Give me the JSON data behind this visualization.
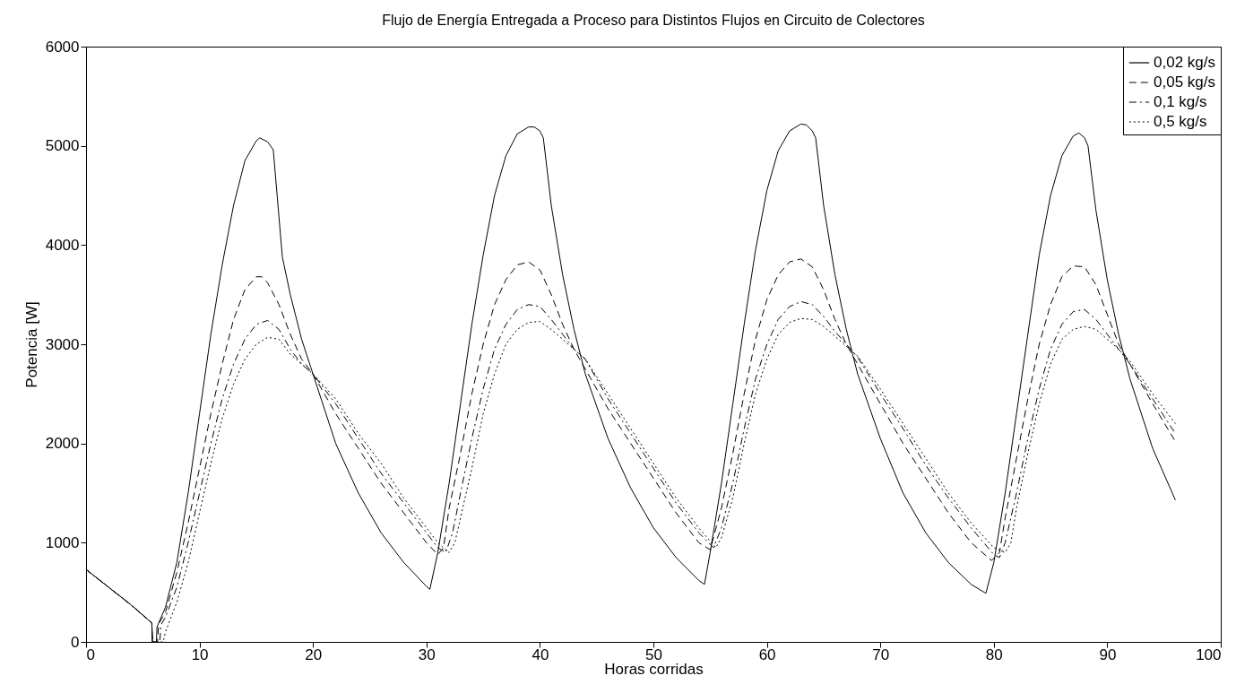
{
  "chart_data": {
    "type": "line",
    "title": "Flujo de Energía Entregada a Proceso para Distintos Flujos en Circuito de Colectores",
    "xlabel": "Horas corridas",
    "ylabel": "Potencia [W]",
    "xlim": [
      0,
      100
    ],
    "ylim": [
      0,
      6000
    ],
    "xticks": [
      0,
      10,
      20,
      30,
      40,
      50,
      60,
      70,
      80,
      90,
      100
    ],
    "yticks": [
      0,
      1000,
      2000,
      3000,
      4000,
      5000,
      6000
    ],
    "grid": false,
    "legend": "top right",
    "marker": "none",
    "series": [
      {
        "name": "0,02 kg/s",
        "color": "#000000",
        "line_style": "solid",
        "x": [
          0,
          1,
          2,
          3,
          4,
          5,
          5.8,
          5.85,
          6.2,
          6.25,
          7,
          8,
          9,
          10,
          11,
          12,
          13,
          14,
          15,
          15.3,
          16,
          16.5,
          17.3,
          18,
          19,
          19.8,
          22,
          24,
          26,
          28,
          30,
          30.3,
          31,
          32,
          33,
          34,
          35,
          36,
          37,
          38,
          39,
          39.5,
          40,
          40.3,
          41,
          42,
          43,
          44,
          46,
          48,
          50,
          52,
          54,
          54.5,
          55,
          56,
          57,
          58,
          59,
          60,
          61,
          62,
          63,
          63.5,
          64,
          64.3,
          65,
          66,
          67,
          68,
          70,
          72,
          74,
          76,
          78,
          79.3,
          80,
          81,
          82,
          83,
          84,
          85,
          86,
          87,
          87.5,
          88,
          88.3,
          89,
          90,
          91,
          92,
          94,
          96
        ],
        "values": [
          730,
          640,
          550,
          460,
          370,
          270,
          190,
          0,
          0,
          150,
          350,
          800,
          1500,
          2300,
          3100,
          3800,
          4400,
          4850,
          5050,
          5080,
          5040,
          4960,
          3880,
          3500,
          3050,
          2770,
          2000,
          1500,
          1100,
          800,
          560,
          530,
          900,
          1600,
          2400,
          3200,
          3900,
          4500,
          4900,
          5120,
          5190,
          5190,
          5150,
          5080,
          4400,
          3700,
          3150,
          2700,
          2050,
          1550,
          1150,
          850,
          620,
          580,
          900,
          1600,
          2400,
          3200,
          3950,
          4550,
          4950,
          5150,
          5220,
          5210,
          5150,
          5080,
          4400,
          3700,
          3150,
          2700,
          2050,
          1500,
          1100,
          800,
          580,
          490,
          800,
          1500,
          2300,
          3100,
          3900,
          4500,
          4900,
          5100,
          5130,
          5080,
          5000,
          4350,
          3650,
          3100,
          2650,
          1950,
          1430
        ]
      },
      {
        "name": "0,05 kg/s",
        "color": "#000000",
        "line_style": "dashed",
        "x": [
          0,
          1,
          2,
          3,
          4,
          5,
          5.8,
          5.85,
          6.3,
          6.4,
          7,
          8,
          9,
          10,
          11,
          12,
          13,
          14,
          15,
          15.5,
          16,
          17,
          18,
          19,
          20,
          22,
          24,
          26,
          28,
          30,
          31,
          31.5,
          32,
          33,
          34,
          35,
          36,
          37,
          38,
          39,
          40,
          41,
          42,
          43,
          44,
          46,
          48,
          50,
          52,
          54,
          55,
          56,
          57,
          58,
          59,
          60,
          61,
          62,
          63,
          64,
          65,
          66,
          67,
          68,
          70,
          72,
          74,
          76,
          78,
          79.8,
          80.5,
          81,
          82,
          83,
          84,
          85,
          86,
          87,
          88,
          89,
          90,
          91,
          92,
          94,
          96
        ],
        "values": [
          730,
          640,
          550,
          460,
          370,
          270,
          190,
          0,
          0,
          180,
          300,
          700,
          1200,
          1750,
          2300,
          2800,
          3250,
          3550,
          3680,
          3680,
          3620,
          3400,
          3100,
          2850,
          2700,
          2300,
          1950,
          1600,
          1300,
          1000,
          880,
          950,
          1350,
          1900,
          2500,
          3000,
          3400,
          3650,
          3800,
          3830,
          3750,
          3500,
          3200,
          2950,
          2750,
          2350,
          2000,
          1650,
          1300,
          1000,
          930,
          1350,
          1900,
          2500,
          3050,
          3450,
          3700,
          3830,
          3860,
          3780,
          3550,
          3250,
          3000,
          2800,
          2400,
          2000,
          1650,
          1300,
          1000,
          820,
          900,
          1250,
          1850,
          2450,
          3000,
          3400,
          3680,
          3790,
          3780,
          3600,
          3300,
          3000,
          2800,
          2400,
          2020
        ]
      },
      {
        "name": "0,1 kg/s",
        "color": "#000000",
        "line_style": "dashdot",
        "x": [
          0,
          1,
          2,
          3,
          4,
          5,
          5.8,
          5.85,
          6.5,
          6.6,
          7,
          8,
          9,
          10,
          11,
          12,
          13,
          14,
          15,
          16,
          17,
          18,
          19,
          20,
          22,
          24,
          26,
          28,
          30,
          31,
          31.7,
          32.3,
          33,
          34,
          35,
          36,
          37,
          38,
          39,
          40,
          41,
          42,
          43,
          44,
          46,
          48,
          50,
          52,
          54,
          55.3,
          56,
          57,
          58,
          59,
          60,
          61,
          62,
          63,
          64,
          65,
          66,
          67,
          68,
          70,
          72,
          74,
          76,
          78,
          80,
          80.5,
          81,
          82,
          83,
          84,
          85,
          86,
          87,
          88,
          89,
          90,
          91,
          92,
          94,
          96
        ],
        "values": [
          730,
          640,
          550,
          460,
          370,
          270,
          190,
          0,
          0,
          170,
          250,
          550,
          1000,
          1500,
          2000,
          2450,
          2800,
          3050,
          3200,
          3240,
          3150,
          2950,
          2800,
          2700,
          2400,
          2050,
          1700,
          1400,
          1100,
          950,
          900,
          1100,
          1500,
          2050,
          2550,
          2950,
          3200,
          3350,
          3400,
          3380,
          3250,
          3100,
          2950,
          2850,
          2450,
          2100,
          1750,
          1400,
          1100,
          950,
          1150,
          1600,
          2150,
          2650,
          3000,
          3250,
          3380,
          3430,
          3400,
          3280,
          3130,
          3000,
          2870,
          2500,
          2150,
          1780,
          1450,
          1150,
          880,
          850,
          1000,
          1500,
          2050,
          2550,
          2950,
          3200,
          3330,
          3350,
          3250,
          3100,
          2950,
          2800,
          2450,
          2100
        ]
      },
      {
        "name": "0,5 kg/s",
        "color": "#000000",
        "line_style": "dotted",
        "x": [
          0,
          1,
          2,
          3,
          4,
          5,
          5.8,
          5.85,
          6.8,
          7,
          8,
          9,
          10,
          11,
          12,
          13,
          14,
          15,
          16,
          17,
          18,
          19,
          20,
          22,
          24,
          26,
          28,
          30,
          31,
          32,
          32.5,
          33,
          34,
          35,
          36,
          37,
          38,
          39,
          40,
          41,
          42,
          43,
          44,
          46,
          48,
          50,
          52,
          54,
          55.5,
          56,
          57,
          58,
          59,
          60,
          61,
          62,
          63,
          64,
          65,
          66,
          67,
          68,
          70,
          72,
          74,
          76,
          78,
          80,
          81,
          81.5,
          82,
          83,
          84,
          85,
          86,
          87,
          88,
          89,
          90,
          91,
          92,
          94,
          96
        ],
        "values": [
          730,
          640,
          550,
          460,
          370,
          270,
          190,
          0,
          0,
          100,
          400,
          800,
          1300,
          1800,
          2250,
          2600,
          2850,
          3000,
          3070,
          3050,
          2900,
          2800,
          2700,
          2450,
          2100,
          1800,
          1450,
          1150,
          1000,
          900,
          1000,
          1250,
          1750,
          2300,
          2700,
          3000,
          3150,
          3220,
          3230,
          3150,
          3050,
          2950,
          2850,
          2500,
          2150,
          1800,
          1450,
          1150,
          950,
          1050,
          1450,
          2000,
          2500,
          2850,
          3100,
          3220,
          3260,
          3250,
          3180,
          3080,
          2980,
          2880,
          2550,
          2200,
          1850,
          1500,
          1200,
          950,
          900,
          1000,
          1350,
          1900,
          2400,
          2800,
          3050,
          3150,
          3180,
          3150,
          3050,
          2950,
          2830,
          2500,
          2200
        ]
      }
    ]
  }
}
